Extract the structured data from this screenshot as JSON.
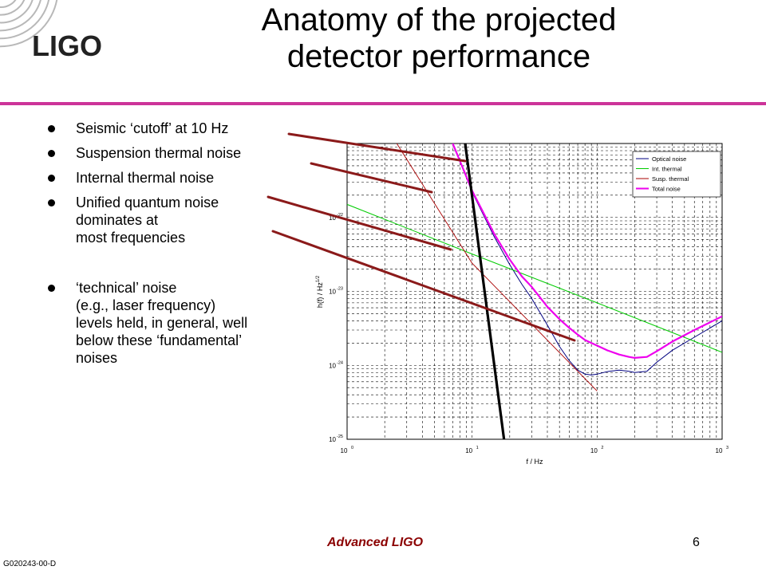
{
  "logo_text": "LIGO",
  "title_lines": [
    "Anatomy of the projected",
    "detector performance"
  ],
  "bullets": [
    [
      "Seismic ‘cutoff’ at 10 Hz"
    ],
    [
      "Suspension thermal noise"
    ],
    [
      "Internal thermal noise"
    ],
    [
      "Unified quantum noise",
      "dominates at",
      "most frequencies"
    ],
    [
      "‘technical’ noise",
      "(e.g., laser frequency)",
      "levels held, in general, well",
      "below these ‘fundamental’",
      "noises"
    ]
  ],
  "footer": {
    "title": "Advanced LIGO",
    "page": "6",
    "doc_id": "G020243-00-D"
  },
  "colors": {
    "accent_rule": "#cc3399",
    "callout": "#8b1a1a",
    "footer_text": "#8b0000",
    "optical": "#000080",
    "internal": "#00cc00",
    "suspension": "#aa0000",
    "total": "#ee00ee"
  },
  "chart_data": {
    "type": "line",
    "x_scale": "log",
    "y_scale": "log",
    "xlim": [
      1,
      1000
    ],
    "ylim": [
      1e-25,
      1e-21
    ],
    "x_ticks": [
      {
        "value": 1,
        "base": "10",
        "exp": "0"
      },
      {
        "value": 10,
        "base": "10",
        "exp": "1"
      },
      {
        "value": 100,
        "base": "10",
        "exp": "2"
      },
      {
        "value": 1000,
        "base": "10",
        "exp": "3"
      }
    ],
    "y_ticks": [
      {
        "value": 1e-25,
        "base": "10",
        "exp": "-25"
      },
      {
        "value": 1e-24,
        "base": "10",
        "exp": "-24"
      },
      {
        "value": 1e-23,
        "base": "10",
        "exp": "-23"
      },
      {
        "value": 1e-22,
        "base": "10",
        "exp": "-22"
      }
    ],
    "xlabel": "f / Hz",
    "ylabel_main": "h(f) / Hz",
    "ylabel_exp": "1/2",
    "grid": true,
    "legend_position": "top-right",
    "series": [
      {
        "name": "Optical noise",
        "color": "#000080",
        "x": [
          7,
          10,
          15,
          20,
          25,
          30,
          40,
          50,
          60,
          70,
          80,
          90,
          100,
          120,
          150,
          180,
          200,
          250,
          300,
          400,
          600,
          1000
        ],
        "y": [
          1e-21,
          2.2e-22,
          5.5e-23,
          2.3e-23,
          1.25e-23,
          8e-24,
          3.5e-24,
          1.8e-24,
          1.15e-24,
          8.6e-25,
          7.6e-25,
          7.4e-25,
          7.6e-25,
          8.2e-25,
          8.6e-25,
          8.3e-25,
          8e-25,
          8.3e-25,
          1.1e-24,
          1.6e-24,
          2.4e-24,
          4e-24
        ]
      },
      {
        "name": "Int. thermal",
        "color": "#00cc00",
        "x": [
          1,
          10,
          100,
          1000
        ],
        "y": [
          1.5e-22,
          3.2e-23,
          7e-24,
          1.5e-24
        ]
      },
      {
        "name": "Susp. thermal",
        "color": "#aa0000",
        "x": [
          2.5,
          10,
          100
        ],
        "y": [
          1e-21,
          2.4e-23,
          4.5e-25
        ]
      },
      {
        "name": "Total noise",
        "color": "#ee00ee",
        "x": [
          7,
          10,
          15,
          20,
          25,
          30,
          40,
          50,
          60,
          70,
          80,
          90,
          100,
          120,
          150,
          180,
          200,
          250,
          300,
          400,
          600,
          1000
        ],
        "y": [
          1e-21,
          2.3e-22,
          6e-23,
          2.7e-23,
          1.6e-23,
          1.15e-23,
          6.2e-24,
          4.2e-24,
          3.2e-24,
          2.6e-24,
          2.2e-24,
          2e-24,
          1.85e-24,
          1.6e-24,
          1.4e-24,
          1.3e-24,
          1.26e-24,
          1.3e-24,
          1.55e-24,
          2.1e-24,
          3e-24,
          4.6e-24
        ]
      }
    ],
    "seismic_cutoff_line": {
      "x": [
        8.8,
        18
      ],
      "y": [
        1e-21,
        1e-25
      ]
    }
  }
}
